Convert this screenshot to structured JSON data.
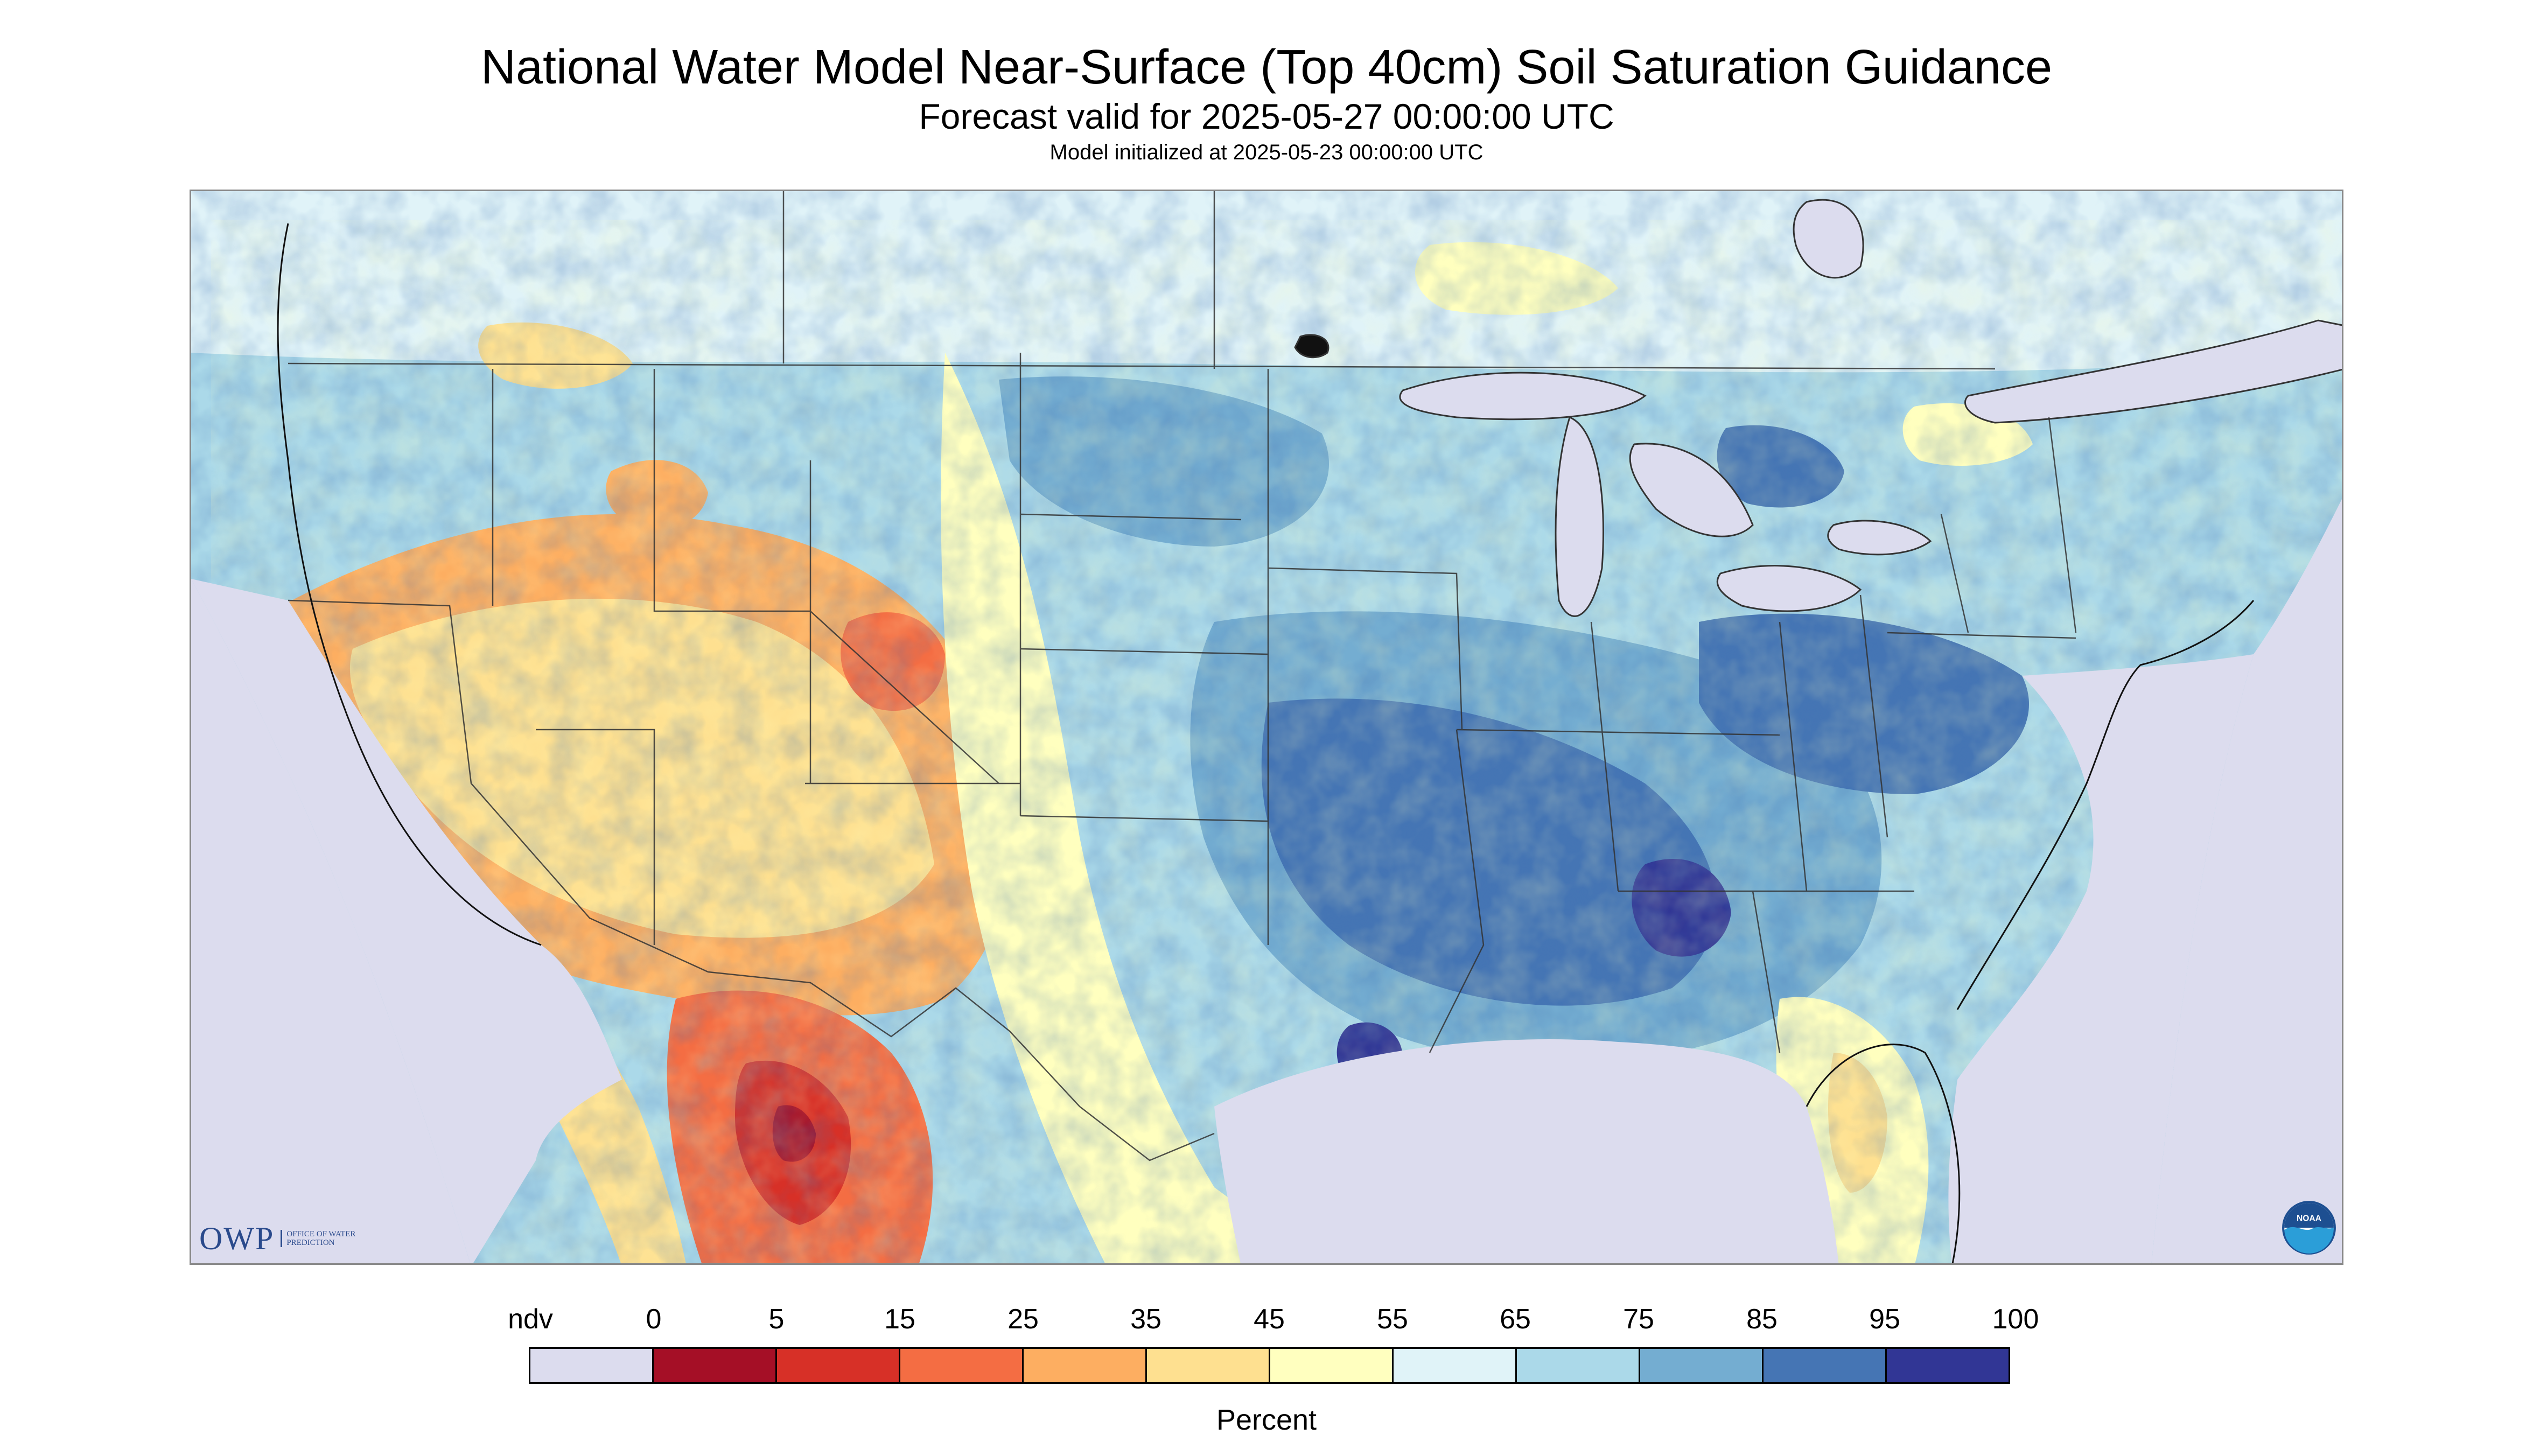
{
  "header": {
    "title": "National Water Model Near-Surface (Top 40cm) Soil Saturation Guidance",
    "subtitle": "Forecast valid for 2025-05-27 00:00:00 UTC",
    "init_line": "Model initialized at 2025-05-23 00:00:00 UTC"
  },
  "logos": {
    "owp_letters": "OWP",
    "owp_sub": "OFFICE OF WATER PREDICTION",
    "noaa_text": "NOAA"
  },
  "legend": {
    "title": "Percent",
    "tick_labels": [
      "ndv",
      "0",
      "5",
      "15",
      "25",
      "35",
      "45",
      "55",
      "65",
      "75",
      "85",
      "95",
      "100"
    ],
    "bins": [
      {
        "label": "ndv",
        "color": "#dcdcee"
      },
      {
        "label": "0-5",
        "color": "#a50f26"
      },
      {
        "label": "5-15",
        "color": "#d73027"
      },
      {
        "label": "15-25",
        "color": "#f46d43"
      },
      {
        "label": "25-35",
        "color": "#fdae61"
      },
      {
        "label": "35-45",
        "color": "#fee090"
      },
      {
        "label": "45-55",
        "color": "#ffffbf"
      },
      {
        "label": "55-65",
        "color": "#e0f3f8"
      },
      {
        "label": "65-75",
        "color": "#abd9e9"
      },
      {
        "label": "75-85",
        "color": "#74add1"
      },
      {
        "label": "85-95",
        "color": "#4575b4"
      },
      {
        "label": "95-100",
        "color": "#313695"
      }
    ]
  }
}
